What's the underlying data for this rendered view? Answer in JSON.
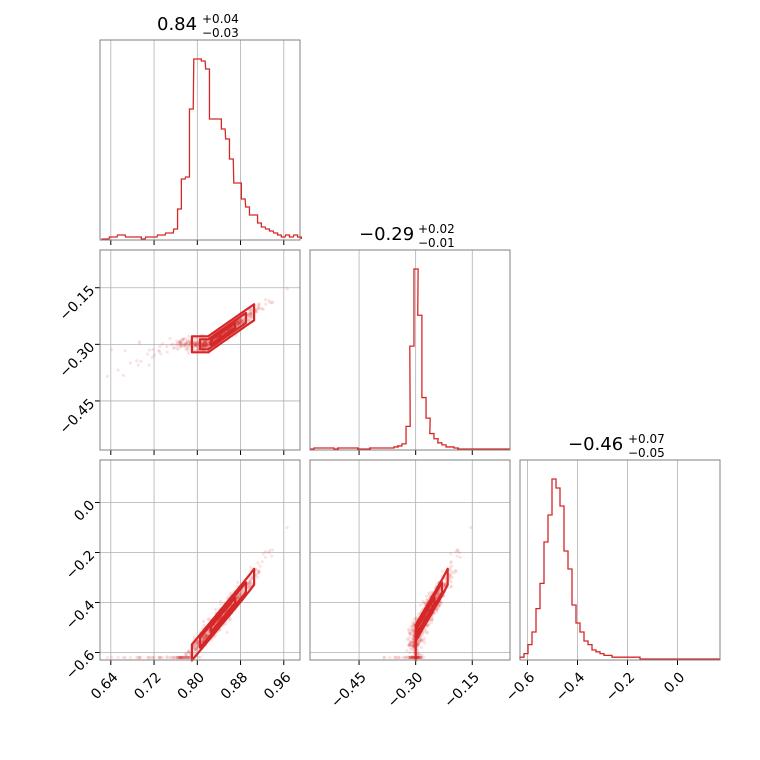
{
  "chart_data": {
    "type": "corner",
    "params": [
      {
        "title": "0.84",
        "plus": "+0.04",
        "minus": "−0.03",
        "range": [
          0.62,
          0.99
        ],
        "ticks": [
          {
            "v": 0.64,
            "label": "0.64"
          },
          {
            "v": 0.72,
            "label": "0.72"
          },
          {
            "v": 0.8,
            "label": "0.80"
          },
          {
            "v": 0.88,
            "label": "0.88"
          },
          {
            "v": 0.96,
            "label": "0.96"
          }
        ],
        "hist": {
          "centers": [
            0.626,
            0.633,
            0.641,
            0.648,
            0.656,
            0.663,
            0.671,
            0.678,
            0.685,
            0.693,
            0.7,
            0.708,
            0.715,
            0.722,
            0.73,
            0.737,
            0.745,
            0.752,
            0.76,
            0.767,
            0.774,
            0.782,
            0.789,
            0.797,
            0.804,
            0.811,
            0.819,
            0.826,
            0.834,
            0.841,
            0.848,
            0.856,
            0.863,
            0.871,
            0.878,
            0.885,
            0.893,
            0.9,
            0.908,
            0.915,
            0.922,
            0.93,
            0.937,
            0.945,
            0.952,
            0.959,
            0.967,
            0.974,
            0.982,
            0.989
          ],
          "values": [
            0,
            0,
            1,
            1,
            2,
            2,
            1,
            1,
            1,
            1,
            0,
            1,
            1,
            1,
            2,
            2,
            3,
            3,
            5,
            15,
            30,
            31,
            65,
            90,
            90,
            89,
            85,
            60,
            60,
            60,
            55,
            50,
            40,
            28,
            28,
            20,
            16,
            12,
            12,
            8,
            6,
            5,
            4,
            3,
            2,
            1,
            2,
            1,
            2,
            1
          ]
        }
      },
      {
        "title": "−0.29",
        "plus": "+0.02",
        "minus": "−0.01",
        "range": [
          -0.58,
          -0.05
        ],
        "ticks": [
          {
            "v": -0.45,
            "label": "−0.45"
          },
          {
            "v": -0.3,
            "label": "−0.30"
          },
          {
            "v": -0.15,
            "label": "−0.15"
          }
        ],
        "hist": {
          "centers": [
            -0.575,
            -0.564,
            -0.554,
            -0.543,
            -0.532,
            -0.522,
            -0.511,
            -0.501,
            -0.49,
            -0.479,
            -0.469,
            -0.458,
            -0.448,
            -0.437,
            -0.426,
            -0.416,
            -0.405,
            -0.395,
            -0.384,
            -0.373,
            -0.363,
            -0.352,
            -0.342,
            -0.331,
            -0.32,
            -0.31,
            -0.299,
            -0.289,
            -0.278,
            -0.267,
            -0.257,
            -0.246,
            -0.236,
            -0.225,
            -0.214,
            -0.204,
            -0.193,
            -0.183,
            -0.172,
            -0.161,
            -0.151,
            -0.14,
            -0.13,
            -0.119,
            -0.108,
            -0.098,
            -0.087,
            -0.077,
            -0.066,
            -0.055
          ],
          "values": [
            0,
            1,
            1,
            1,
            1,
            1,
            0,
            1,
            1,
            1,
            1,
            1,
            0,
            0,
            0,
            1,
            1,
            1,
            1,
            1,
            1,
            2,
            3,
            5,
            22,
            100,
            175,
            130,
            50,
            30,
            15,
            10,
            6,
            4,
            2,
            2,
            1,
            0,
            0,
            0,
            0,
            0,
            0,
            0,
            0,
            0,
            0,
            0,
            0,
            0
          ]
        }
      },
      {
        "title": "−0.46",
        "plus": "+0.07",
        "minus": "−0.05",
        "range": [
          -0.63,
          0.17
        ],
        "ticks": [
          {
            "v": -0.6,
            "label": "−0.6"
          },
          {
            "v": -0.4,
            "label": "−0.4"
          },
          {
            "v": -0.2,
            "label": "−0.2"
          },
          {
            "v": 0.0,
            "label": "0.0"
          }
        ],
        "hist": {
          "centers": [
            -0.622,
            -0.606,
            -0.59,
            -0.574,
            -0.558,
            -0.542,
            -0.526,
            -0.51,
            -0.494,
            -0.478,
            -0.462,
            -0.446,
            -0.43,
            -0.414,
            -0.398,
            -0.382,
            -0.366,
            -0.35,
            -0.334,
            -0.318,
            -0.302,
            -0.286,
            -0.27,
            -0.254,
            -0.238,
            -0.222,
            -0.206,
            -0.19,
            -0.174,
            -0.158,
            -0.142,
            -0.126,
            -0.11,
            -0.094,
            -0.078,
            -0.062,
            -0.046,
            -0.03,
            -0.014,
            0.002,
            0.018,
            0.034,
            0.05,
            0.066,
            0.082,
            0.098,
            0.114,
            0.13,
            0.146,
            0.162
          ],
          "values": [
            1,
            3,
            8,
            15,
            28,
            42,
            65,
            80,
            100,
            95,
            85,
            60,
            50,
            30,
            20,
            15,
            10,
            8,
            5,
            4,
            3,
            2,
            2,
            1,
            1,
            1,
            1,
            1,
            1,
            1,
            0,
            0,
            0,
            0,
            0,
            0,
            0,
            0,
            0,
            0,
            0,
            0,
            0,
            0,
            0,
            0,
            0,
            0,
            0,
            0
          ]
        }
      }
    ],
    "grid": true,
    "color": "#d62728"
  }
}
